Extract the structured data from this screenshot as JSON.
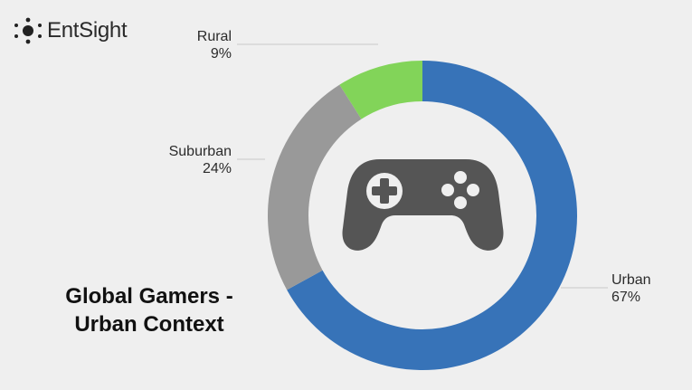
{
  "brand": {
    "name": "EntSight",
    "logo_icon": "dots-logo-icon"
  },
  "center_icon": "gamepad-icon",
  "chart_data": {
    "type": "pie",
    "variant": "donut",
    "title": "Global Gamers - Urban Context",
    "title_lines": [
      "Global Gamers -",
      "Urban Context"
    ],
    "slices": [
      {
        "label": "Urban",
        "value": 67,
        "display": "67%",
        "color": "#3773b8"
      },
      {
        "label": "Suburban",
        "value": 24,
        "display": "24%",
        "color": "#999999"
      },
      {
        "label": "Rural",
        "value": 9,
        "display": "9%",
        "color": "#82d459"
      }
    ],
    "legend": "none",
    "direction": "clockwise from top"
  }
}
